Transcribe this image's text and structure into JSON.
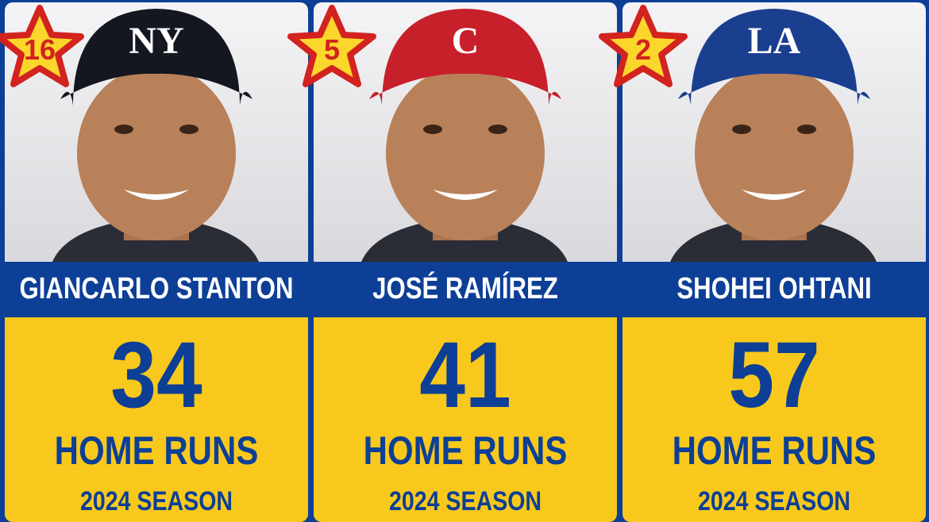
{
  "colors": {
    "background_blue": "#0d3f96",
    "stat_yellow": "#f8c91c",
    "star_red": "#d2231f",
    "star_yellow": "#fbd72b"
  },
  "players": [
    {
      "rank": "16",
      "name": "GIANCARLO STANTON",
      "home_runs": "34",
      "unit": "HOME RUNS",
      "season": "2024 SEASON",
      "cap_color": "#14171f",
      "cap_logo": "NY"
    },
    {
      "rank": "5",
      "name": "JOSÉ RAMÍREZ",
      "home_runs": "41",
      "unit": "HOME RUNS",
      "season": "2024 SEASON",
      "cap_color": "#c8202b",
      "cap_logo": "C"
    },
    {
      "rank": "2",
      "name": "SHOHEI OHTANI",
      "home_runs": "57",
      "unit": "HOME RUNS",
      "season": "2024 SEASON",
      "cap_color": "#1b3f8f",
      "cap_logo": "LA"
    }
  ]
}
